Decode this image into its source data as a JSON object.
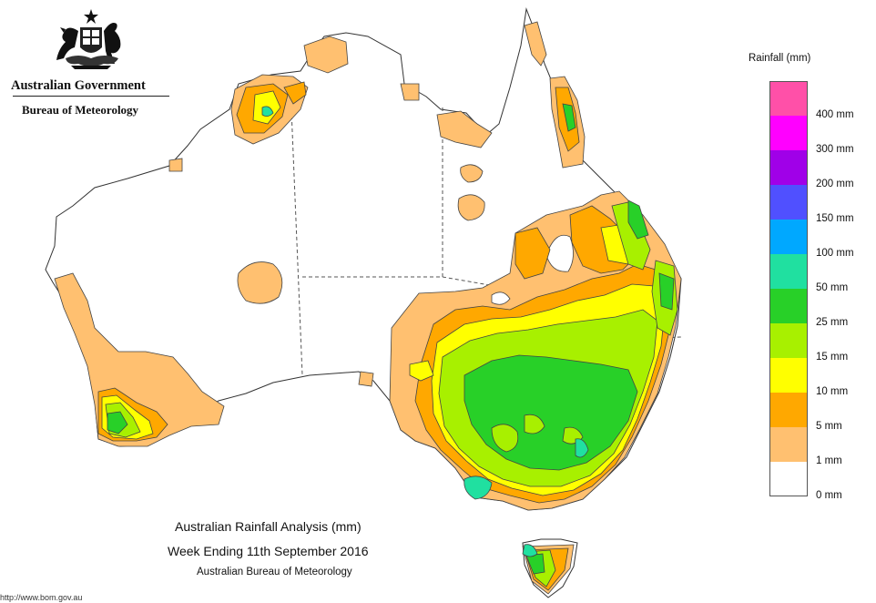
{
  "header": {
    "government": "Australian Government",
    "bureau": "Bureau of Meteorology"
  },
  "legend": {
    "title": "Rainfall (mm)",
    "bins": [
      {
        "label": "",
        "color": "#ff50a8"
      },
      {
        "label": "400 mm",
        "color": "#ff00ff"
      },
      {
        "label": "300 mm",
        "color": "#a000e8"
      },
      {
        "label": "200 mm",
        "color": "#5050ff"
      },
      {
        "label": "150 mm",
        "color": "#00a8ff"
      },
      {
        "label": "100 mm",
        "color": "#20e0a0"
      },
      {
        "label": "50 mm",
        "color": "#28d028"
      },
      {
        "label": "25 mm",
        "color": "#a8f000"
      },
      {
        "label": "15 mm",
        "color": "#ffff00"
      },
      {
        "label": "10 mm",
        "color": "#ffa800"
      },
      {
        "label": "5 mm",
        "color": "#ffc070"
      },
      {
        "label": "1 mm",
        "color": "#ffffff"
      },
      {
        "label": "0 mm",
        "color": ""
      }
    ]
  },
  "caption": {
    "title": "Australian Rainfall Analysis (mm)",
    "week": "Week Ending 11th September 2016",
    "agency": "Australian Bureau of Meteorology",
    "url": "http://www.bom.gov.au"
  }
}
